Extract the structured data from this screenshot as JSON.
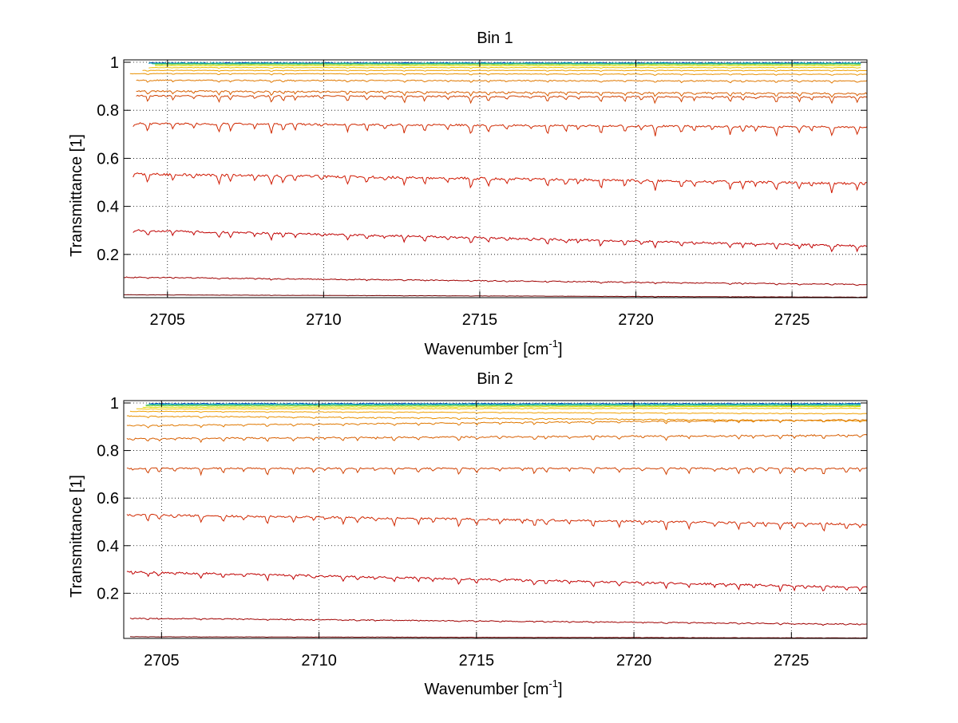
{
  "figure": {
    "background": "#ffffff"
  },
  "chart_data": [
    {
      "type": "line",
      "title": "Bin 1",
      "xlabel": "Wavenumber [cm",
      "xlabel_sup": "-1",
      "xlabel_end": "]",
      "ylabel": "Transmittance [1]",
      "xlim": [
        2703.6,
        2727.4
      ],
      "ylim": [
        0.02,
        1.01
      ],
      "xticks": [
        2705,
        2710,
        2715,
        2720,
        2725
      ],
      "xtick_labels": [
        "2705",
        "2710",
        "2715",
        "2720",
        "2725"
      ],
      "yticks": [
        0.2,
        0.4,
        0.6,
        0.8,
        1.0
      ],
      "ytick_labels": [
        "0.2",
        "0.4",
        "0.6",
        "0.8",
        "1"
      ],
      "grid": true,
      "x_start": 2703.6,
      "x_end": 2727.4,
      "series": [
        {
          "color": "#0040c0",
          "start_x": 2704.4,
          "end_x": 2727.2,
          "y_start": 0.997,
          "y_end": 0.997,
          "noise": 0.002,
          "dips": 0
        },
        {
          "color": "#00a0c0",
          "start_x": 2704.4,
          "end_x": 2727.2,
          "y_start": 0.996,
          "y_end": 0.996,
          "noise": 0.002,
          "dips": 0
        },
        {
          "color": "#30c080",
          "start_x": 2704.5,
          "end_x": 2727.2,
          "y_start": 0.994,
          "y_end": 0.994,
          "noise": 0.001,
          "dips": 0
        },
        {
          "color": "#90d040",
          "start_x": 2704.6,
          "end_x": 2727.2,
          "y_start": 0.991,
          "y_end": 0.991,
          "noise": 0.001,
          "dips": 0
        },
        {
          "color": "#e0e000",
          "start_x": 2704.6,
          "end_x": 2727.2,
          "y_start": 0.986,
          "y_end": 0.986,
          "noise": 0.001,
          "dips": 0
        },
        {
          "color": "#f0c000",
          "start_x": 2704.4,
          "end_x": 2727.2,
          "y_start": 0.978,
          "y_end": 0.978,
          "noise": 0.001,
          "dips": 0.002
        },
        {
          "color": "#f0a000",
          "start_x": 2704.2,
          "end_x": 2727.4,
          "y_start": 0.966,
          "y_end": 0.966,
          "noise": 0.001,
          "dips": 0.003
        },
        {
          "color": "#e89000",
          "start_x": 2703.8,
          "end_x": 2727.4,
          "y_start": 0.953,
          "y_end": 0.95,
          "noise": 0.001,
          "dips": 0.004
        },
        {
          "color": "#e07800",
          "start_x": 2704.0,
          "end_x": 2727.4,
          "y_start": 0.925,
          "y_end": 0.922,
          "noise": 0.002,
          "dips": 0.006
        },
        {
          "color": "#d85e00",
          "start_x": 2704.0,
          "end_x": 2727.4,
          "y_start": 0.88,
          "y_end": 0.87,
          "noise": 0.003,
          "dips": 0.012
        },
        {
          "color": "#d04000",
          "start_x": 2704.0,
          "end_x": 2727.4,
          "y_start": 0.86,
          "y_end": 0.855,
          "noise": 0.003,
          "dips": 0.02
        },
        {
          "color": "#d02800",
          "start_x": 2703.9,
          "end_x": 2727.4,
          "y_start": 0.745,
          "y_end": 0.73,
          "noise": 0.004,
          "dips": 0.03
        },
        {
          "color": "#d01800",
          "start_x": 2703.9,
          "end_x": 2727.4,
          "y_start": 0.535,
          "y_end": 0.495,
          "noise": 0.005,
          "dips": 0.03
        },
        {
          "color": "#c00000",
          "start_x": 2703.9,
          "end_x": 2727.4,
          "y_start": 0.3,
          "y_end": 0.235,
          "noise": 0.004,
          "dips": 0.02
        },
        {
          "color": "#a00000",
          "start_x": 2703.6,
          "end_x": 2727.4,
          "y_start": 0.105,
          "y_end": 0.075,
          "noise": 0.002,
          "dips": 0.004
        },
        {
          "color": "#700000",
          "start_x": 2703.6,
          "end_x": 2727.4,
          "y_start": 0.032,
          "y_end": 0.022,
          "noise": 0.0005,
          "dips": 0.001
        }
      ]
    },
    {
      "type": "line",
      "title": "Bin 2",
      "xlabel": "Wavenumber [cm",
      "xlabel_sup": "-1",
      "xlabel_end": "]",
      "ylabel": "Transmittance [1]",
      "xlim": [
        2703.8,
        2727.4
      ],
      "ylim": [
        0.01,
        1.01
      ],
      "xticks": [
        2705,
        2710,
        2715,
        2720,
        2725
      ],
      "xtick_labels": [
        "2705",
        "2710",
        "2715",
        "2720",
        "2725"
      ],
      "yticks": [
        0.2,
        0.4,
        0.6,
        0.8,
        1.0
      ],
      "ytick_labels": [
        "0.2",
        "0.4",
        "0.6",
        "0.8",
        "1"
      ],
      "grid": true,
      "series": [
        {
          "color": "#0040c0",
          "start_x": 2704.6,
          "end_x": 2727.2,
          "y_start": 0.997,
          "y_end": 0.997,
          "noise": 0.002,
          "dips": 0
        },
        {
          "color": "#00a0c0",
          "start_x": 2704.6,
          "end_x": 2727.2,
          "y_start": 0.995,
          "y_end": 0.995,
          "noise": 0.002,
          "dips": 0
        },
        {
          "color": "#30c080",
          "start_x": 2704.5,
          "end_x": 2727.2,
          "y_start": 0.992,
          "y_end": 0.992,
          "noise": 0.001,
          "dips": 0
        },
        {
          "color": "#90d040",
          "start_x": 2704.5,
          "end_x": 2727.2,
          "y_start": 0.988,
          "y_end": 0.988,
          "noise": 0.001,
          "dips": 0
        },
        {
          "color": "#e0e000",
          "start_x": 2704.4,
          "end_x": 2727.2,
          "y_start": 0.982,
          "y_end": 0.985,
          "noise": 0.001,
          "dips": 0
        },
        {
          "color": "#f0c000",
          "start_x": 2704.2,
          "end_x": 2727.2,
          "y_start": 0.975,
          "y_end": 0.978,
          "noise": 0.001,
          "dips": 0.002
        },
        {
          "color": "#f0a000",
          "start_x": 2704.0,
          "end_x": 2727.4,
          "y_start": 0.965,
          "y_end": 0.955,
          "noise": 0.001,
          "dips": 0.003
        },
        {
          "color": "#e89000",
          "start_x": 2703.9,
          "end_x": 2727.4,
          "y_start": 0.945,
          "y_end": 0.925,
          "noise": 0.002,
          "dips": 0.005
        },
        {
          "color": "#e07800",
          "start_x": 2703.9,
          "end_x": 2727.4,
          "y_start": 0.905,
          "y_end": 0.93,
          "noise": 0.002,
          "dips": 0.008
        },
        {
          "color": "#d85e00",
          "start_x": 2703.9,
          "end_x": 2727.4,
          "y_start": 0.85,
          "y_end": 0.865,
          "noise": 0.003,
          "dips": 0.012
        },
        {
          "color": "#d04000",
          "start_x": 2703.9,
          "end_x": 2727.4,
          "y_start": 0.725,
          "y_end": 0.725,
          "noise": 0.003,
          "dips": 0.02
        },
        {
          "color": "#d02800",
          "start_x": 2703.9,
          "end_x": 2727.4,
          "y_start": 0.53,
          "y_end": 0.49,
          "noise": 0.004,
          "dips": 0.025
        },
        {
          "color": "#c00000",
          "start_x": 2703.9,
          "end_x": 2727.4,
          "y_start": 0.29,
          "y_end": 0.225,
          "noise": 0.004,
          "dips": 0.018
        },
        {
          "color": "#a00000",
          "start_x": 2704.0,
          "end_x": 2727.4,
          "y_start": 0.095,
          "y_end": 0.07,
          "noise": 0.002,
          "dips": 0.004
        },
        {
          "color": "#700000",
          "start_x": 2704.0,
          "end_x": 2727.4,
          "y_start": 0.017,
          "y_end": 0.012,
          "noise": 0.0005,
          "dips": 0.001
        }
      ]
    }
  ]
}
